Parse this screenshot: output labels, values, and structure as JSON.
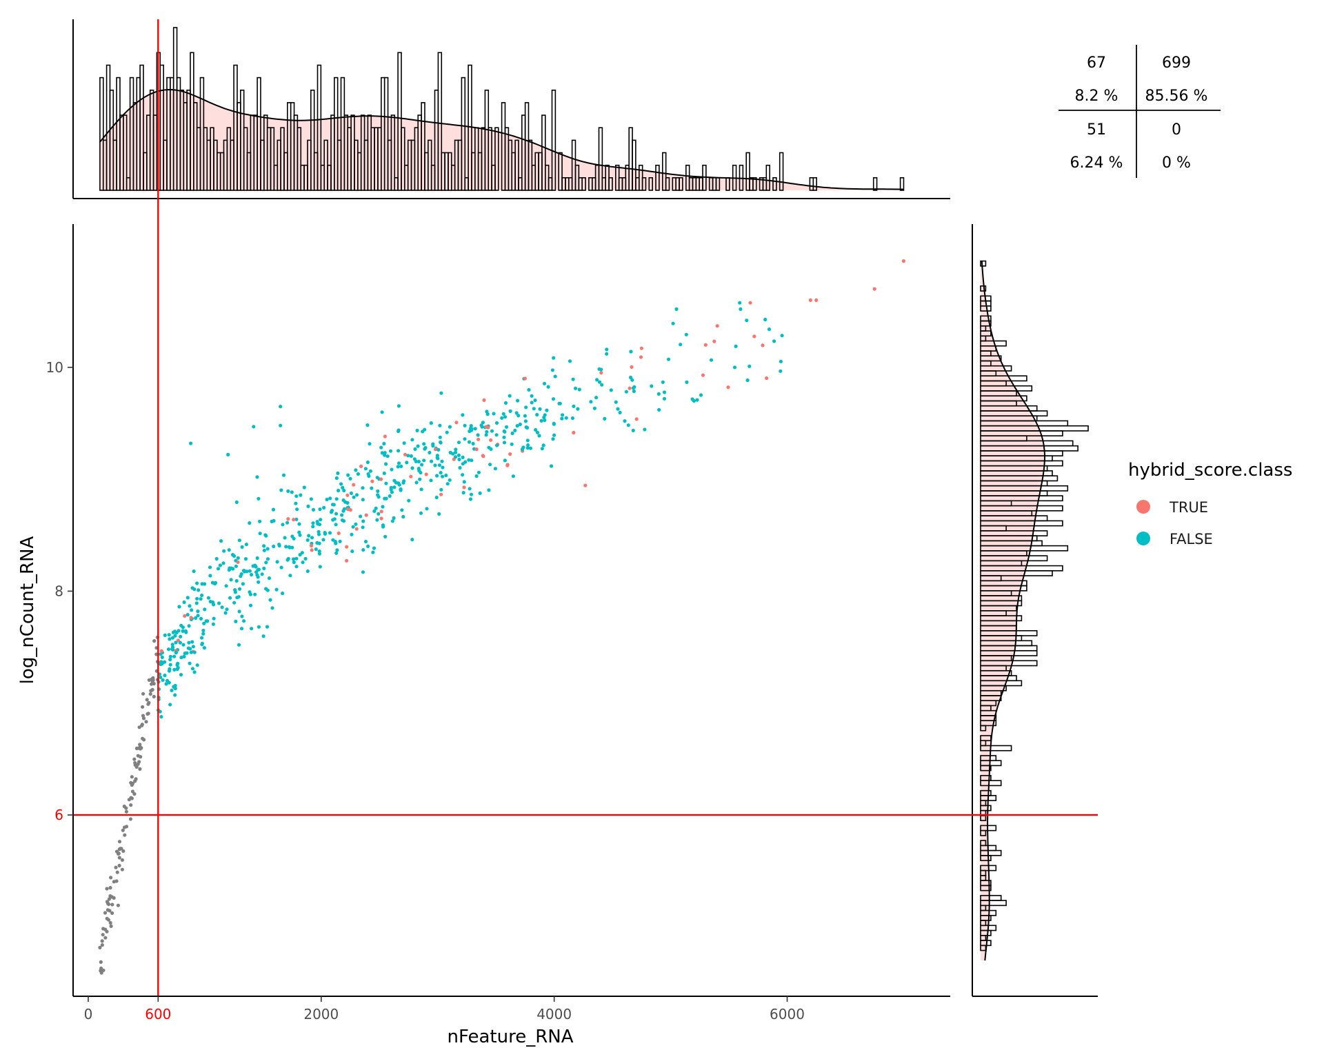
{
  "chart_data": [
    {
      "panel": "main-scatter",
      "type": "scatter",
      "xlabel": "nFeature_RNA",
      "ylabel": "log_nCount_RNA",
      "xlim": [
        -130,
        7400
      ],
      "ylim": [
        4.38,
        11.28
      ],
      "x_ticks": [
        0,
        600,
        2000,
        4000,
        6000
      ],
      "y_ticks": [
        6,
        8,
        10
      ],
      "x_threshold": 600,
      "y_threshold": 6,
      "threshold_color": "#ff0000",
      "grid": false,
      "legend": {
        "title": "hybrid_score.class",
        "placement": "right",
        "items": [
          {
            "label": "TRUE",
            "color": "#f8766d"
          },
          {
            "label": "FALSE",
            "color": "#00bfc4"
          }
        ]
      },
      "below_threshold_color": "#808080",
      "trend_segments": [
        {
          "x0": 100,
          "x1": 600,
          "y0": 4.7,
          "y1": 7.5,
          "spread": 0.12,
          "n": 118
        },
        {
          "x0": 600,
          "x1": 1000,
          "y0": 7.15,
          "y1": 7.9,
          "spread": 0.22,
          "n": 120
        },
        {
          "x0": 1000,
          "x1": 2000,
          "y0": 7.9,
          "y1": 8.6,
          "spread": 0.26,
          "n": 170
        },
        {
          "x0": 2000,
          "x1": 3000,
          "y0": 8.6,
          "y1": 9.2,
          "spread": 0.25,
          "n": 180
        },
        {
          "x0": 3000,
          "x1": 4000,
          "y0": 9.2,
          "y1": 9.6,
          "spread": 0.22,
          "n": 150
        },
        {
          "x0": 4000,
          "x1": 5000,
          "y0": 9.6,
          "y1": 9.85,
          "spread": 0.22,
          "n": 52
        },
        {
          "x0": 5000,
          "x1": 6000,
          "y0": 9.85,
          "y1": 10.3,
          "spread": 0.25,
          "n": 26
        }
      ],
      "extra_points": [
        {
          "x": 7000,
          "y": 10.95,
          "class": "TRUE"
        },
        {
          "x": 6750,
          "y": 10.7,
          "class": "TRUE"
        },
        {
          "x": 6250,
          "y": 10.6,
          "class": "TRUE"
        },
        {
          "x": 6200,
          "y": 10.6,
          "class": "TRUE"
        },
        {
          "x": 5400,
          "y": 10.37,
          "class": "TRUE"
        },
        {
          "x": 5300,
          "y": 10.2,
          "class": "TRUE"
        },
        {
          "x": 5050,
          "y": 10.52,
          "class": "FALSE"
        },
        {
          "x": 5600,
          "y": 10.52,
          "class": "FALSE"
        },
        {
          "x": 5550,
          "y": 10.0,
          "class": "FALSE"
        },
        {
          "x": 5200,
          "y": 9.7,
          "class": "FALSE"
        },
        {
          "x": 4750,
          "y": 10.17,
          "class": "TRUE"
        },
        {
          "x": 4450,
          "y": 10.12,
          "class": "FALSE"
        },
        {
          "x": 3750,
          "y": 9.9,
          "class": "TRUE"
        },
        {
          "x": 3600,
          "y": 9.13,
          "class": "TRUE"
        },
        {
          "x": 1650,
          "y": 9.65,
          "class": "FALSE"
        },
        {
          "x": 880,
          "y": 9.32,
          "class": "FALSE"
        },
        {
          "x": 1200,
          "y": 9.22,
          "class": "FALSE"
        },
        {
          "x": 1420,
          "y": 9.47,
          "class": "FALSE"
        },
        {
          "x": 1650,
          "y": 9.48,
          "class": "FALSE"
        },
        {
          "x": 1450,
          "y": 9.02,
          "class": "FALSE"
        }
      ],
      "true_fraction": 0.07,
      "seed": 20240611
    },
    {
      "panel": "top-marginal",
      "type": "bar",
      "variable": "nFeature_RNA",
      "range": [
        100,
        7000
      ],
      "bins": 240,
      "with_density": true,
      "fill": "#ffdede",
      "edge": "#000000",
      "density_color": "#000000"
    },
    {
      "panel": "right-marginal",
      "type": "bar",
      "variable": "log_nCount_RNA",
      "range": [
        4.7,
        10.95
      ],
      "bins": 140,
      "orientation": "horizontal",
      "with_density": true,
      "fill": "#ffdede",
      "edge": "#000000",
      "density_color": "#000000"
    },
    {
      "panel": "quadrant-counts",
      "type": "table",
      "rows": [
        [
          {
            "count": "67",
            "pct": "8.2 %"
          },
          {
            "count": "699",
            "pct": "85.56 %"
          }
        ],
        [
          {
            "count": "51",
            "pct": "6.24 %"
          },
          {
            "count": "0",
            "pct": "0 %"
          }
        ]
      ]
    }
  ]
}
